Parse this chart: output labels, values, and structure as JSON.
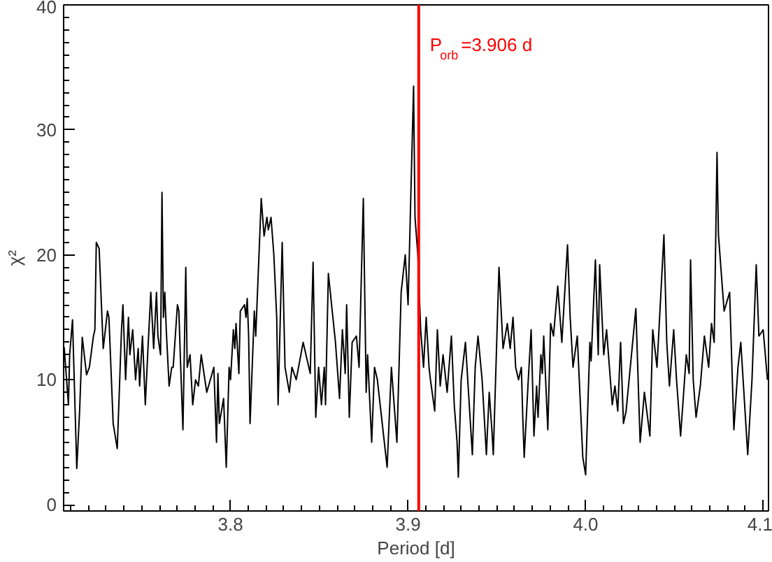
{
  "chart_data": {
    "type": "line",
    "xlabel": "Period [d]",
    "ylabel": "χ²",
    "xlim": [
      3.706,
      4.103
    ],
    "ylim": [
      -0.5,
      40
    ],
    "xticks": [
      3.8,
      3.9,
      {
        "value": 4.0,
        "label": "4.0"
      },
      4.1
    ],
    "yticks": [
      0,
      10,
      20,
      30,
      40
    ],
    "line_style": "solid",
    "ref_lines": [
      {
        "axis": "x",
        "value": 3.906,
        "label": "P$_{orb}$=3.906 d",
        "color": "#ff0000"
      }
    ],
    "series": [
      {
        "color": "#000000",
        "x": [
          3.7063,
          3.7087,
          3.7094,
          3.711,
          3.7134,
          3.715,
          3.7165,
          3.7189,
          3.7205,
          3.7228,
          3.7236,
          3.7244,
          3.726,
          3.7283,
          3.7307,
          3.7315,
          3.7339,
          3.7362,
          3.7386,
          3.7394,
          3.7409,
          3.7425,
          3.7433,
          3.7449,
          3.7465,
          3.748,
          3.7488,
          3.7504,
          3.752,
          3.7535,
          3.7551,
          3.7567,
          3.7583,
          3.7591,
          3.7606,
          3.7614,
          3.7622,
          3.763,
          3.7638,
          3.7654,
          3.7669,
          3.7677,
          3.7701,
          3.7709,
          3.7717,
          3.7732,
          3.7748,
          3.7756,
          3.7772,
          3.7787,
          3.7803,
          3.7819,
          3.7835,
          3.7866,
          3.7906,
          3.7921,
          3.7929,
          3.7937,
          3.7961,
          3.7976,
          3.7992,
          3.8,
          3.8016,
          3.8024,
          3.8031,
          3.8047,
          3.8055,
          3.8079,
          3.8087,
          3.8094,
          3.8102,
          3.811,
          3.8134,
          3.8142,
          3.8173,
          3.8189,
          3.8205,
          3.8213,
          3.8228,
          3.8244,
          3.826,
          3.8268,
          3.8291,
          3.8307,
          3.8331,
          3.8346,
          3.837,
          3.8409,
          3.8449,
          3.8465,
          3.848,
          3.8496,
          3.8512,
          3.8528,
          3.8535,
          3.8551,
          3.8591,
          3.8614,
          3.863,
          3.8646,
          3.8654,
          3.8669,
          3.8685,
          3.8709,
          3.8724,
          3.8748,
          3.8764,
          3.8772,
          3.8795,
          3.8811,
          3.8827,
          3.8882,
          3.8906,
          3.8937,
          3.8961,
          3.8984,
          3.9,
          3.9031,
          3.9039,
          3.9055,
          3.9071,
          3.9087,
          3.9102,
          3.9118,
          3.9126,
          3.915,
          3.9165,
          3.9181,
          3.9197,
          3.922,
          3.9244,
          3.926,
          3.9276,
          3.9283,
          3.9299,
          3.9323,
          3.9362,
          3.9378,
          3.9394,
          3.9417,
          3.9441,
          3.9457,
          3.9472,
          3.948,
          3.9512,
          3.9535,
          3.9559,
          3.9575,
          3.9591,
          3.9606,
          3.9622,
          3.9638,
          3.9646,
          3.9654,
          3.9677,
          3.9693,
          3.9709,
          3.9724,
          3.9732,
          3.9748,
          3.9756,
          3.9764,
          3.9787,
          3.9803,
          3.9819,
          3.9843,
          3.9866,
          3.9898,
          3.9913,
          3.9929,
          3.9953,
          3.9984,
          4.0,
          4.0024,
          4.0031,
          4.0055,
          4.0071,
          4.0079,
          4.0102,
          4.0118,
          4.015,
          4.0165,
          4.0181,
          4.0197,
          4.0213,
          4.0228,
          4.0283,
          4.0299,
          4.0307,
          4.0331,
          4.0362,
          4.0378,
          4.0402,
          4.0441,
          4.0457,
          4.0472,
          4.0496,
          4.0512,
          4.0535,
          4.0567,
          4.0583,
          4.0591,
          4.0606,
          4.0622,
          4.0646,
          4.0669,
          4.0693,
          4.0709,
          4.0724,
          4.074,
          4.0748,
          4.078,
          4.0811,
          4.0835,
          4.0858,
          4.0874,
          4.0913,
          4.0937,
          4.0961,
          4.0976,
          4.1,
          4.1024
        ],
        "values": [
          12.6,
          8,
          12,
          14.8,
          2.9,
          7.5,
          13.4,
          10.4,
          11,
          13.5,
          14,
          21,
          20.5,
          12.5,
          15.5,
          15,
          6.5,
          4.5,
          14,
          16,
          10,
          15,
          12,
          14,
          10,
          12.5,
          9.5,
          13.5,
          8,
          12.5,
          17,
          12.5,
          17,
          13.5,
          12,
          25,
          15,
          17,
          14,
          9.5,
          11,
          11,
          16,
          15.5,
          12,
          6,
          19,
          11,
          12,
          8,
          10,
          9.5,
          12,
          9,
          11,
          5,
          10.5,
          6.5,
          8.5,
          3,
          11,
          10,
          14,
          12.5,
          14.5,
          10.5,
          15.5,
          16,
          15,
          16.5,
          13.5,
          6.5,
          15.5,
          13.5,
          24.5,
          21.5,
          23,
          22,
          23,
          20,
          15,
          8,
          21,
          11,
          9,
          11,
          10,
          13,
          10.5,
          19.4,
          7,
          11,
          8,
          11,
          8,
          18.5,
          13,
          8.5,
          14,
          10.5,
          16,
          7,
          13,
          13.5,
          11,
          24.5,
          9,
          12,
          5,
          11,
          10,
          3,
          11,
          5,
          17,
          20,
          16,
          33.5,
          23,
          20,
          14,
          11,
          15,
          11,
          10,
          7.5,
          14,
          9.5,
          12,
          9,
          13.5,
          8,
          5,
          2.2,
          10,
          13,
          4,
          11,
          13.5,
          10,
          4,
          9,
          6,
          4,
          19,
          12.5,
          14.5,
          12.5,
          15,
          11,
          10,
          11,
          7,
          3.8,
          10,
          14,
          5.5,
          9.5,
          7,
          12,
          10.5,
          13.5,
          6,
          14.5,
          13.5,
          17.5,
          13,
          20.8,
          15,
          11,
          13.5,
          3.8,
          2.4,
          13,
          11.5,
          19.6,
          12,
          19.2,
          12,
          14,
          8,
          9.5,
          7.5,
          13,
          6.5,
          7.5,
          15.7,
          8.5,
          5,
          9,
          5.5,
          14,
          11,
          21.6,
          13,
          9.5,
          14,
          10,
          5.5,
          12,
          10.5,
          19.6,
          10,
          7,
          9.5,
          13.5,
          11,
          14.5,
          13,
          28.2,
          21.6,
          15.5,
          17,
          6,
          11,
          13,
          4,
          10,
          19.2,
          13.5,
          14,
          10
        ]
      }
    ]
  }
}
